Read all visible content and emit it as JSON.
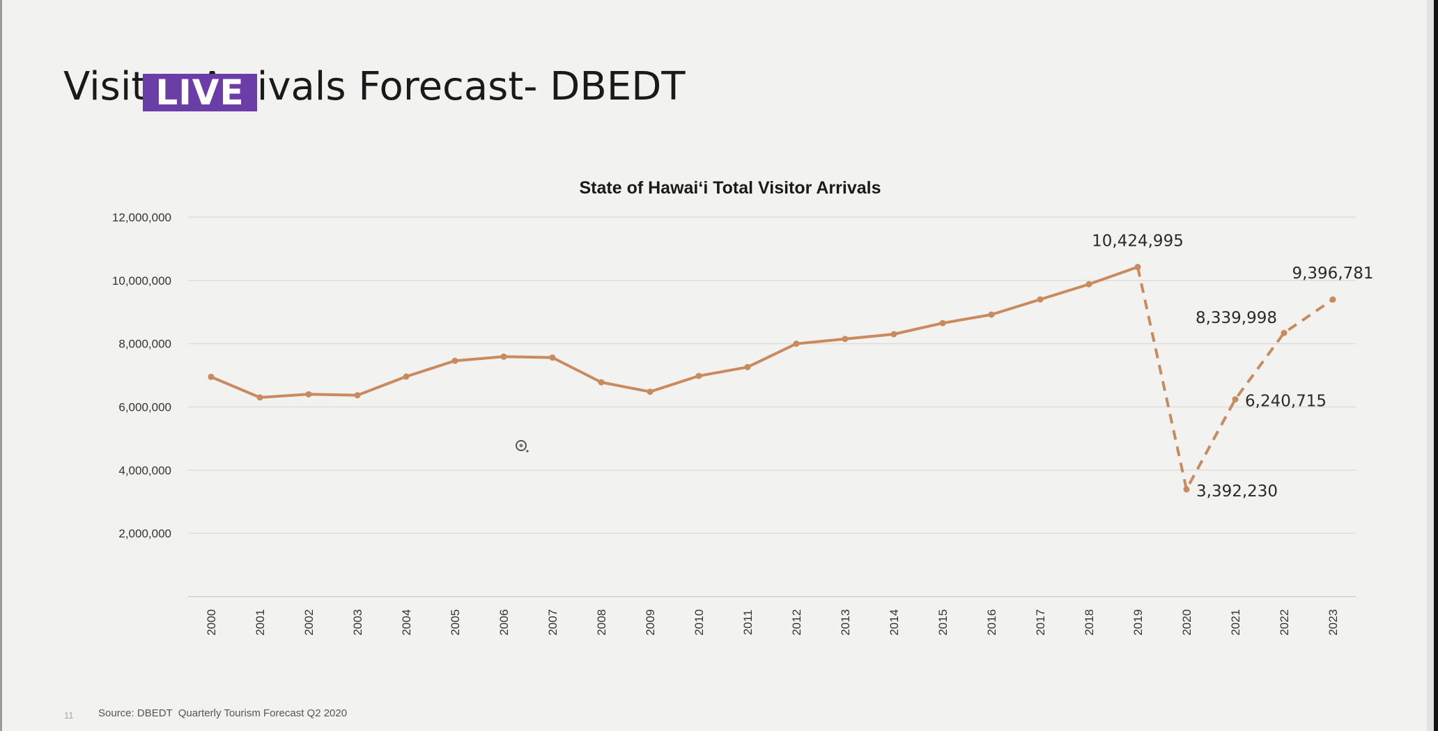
{
  "slide": {
    "title": "Visitor Arrivals Forecast- DBEDT",
    "live_badge": "LIVE",
    "source": "Source: DBEDT  Quarterly Tourism Forecast Q2 2020",
    "page_number": "11"
  },
  "colors": {
    "series": "#c98a5e",
    "gridline": "#dcdcdc",
    "live_badge": "#6a3ea6"
  },
  "icons": {
    "cursor": "cursor-icon"
  },
  "chart_data": {
    "type": "line",
    "title": "State of Hawaiʻi Total Visitor Arrivals",
    "xlabel": "",
    "ylabel": "",
    "ylim": [
      0,
      12000000
    ],
    "yticks": [
      {
        "value": 2000000,
        "label": "2,000,000"
      },
      {
        "value": 4000000,
        "label": "4,000,000"
      },
      {
        "value": 6000000,
        "label": "6,000,000"
      },
      {
        "value": 8000000,
        "label": "8,000,000"
      },
      {
        "value": 10000000,
        "label": "10,000,000"
      },
      {
        "value": 12000000,
        "label": "12,000,000"
      }
    ],
    "grid": true,
    "legend": "none",
    "x": [
      "2000",
      "2001",
      "2002",
      "2003",
      "2004",
      "2005",
      "2006",
      "2007",
      "2008",
      "2009",
      "2010",
      "2011",
      "2012",
      "2013",
      "2014",
      "2015",
      "2016",
      "2017",
      "2018",
      "2019",
      "2020",
      "2021",
      "2022",
      "2023"
    ],
    "series": [
      {
        "style": "solid",
        "x": [
          "2000",
          "2001",
          "2002",
          "2003",
          "2004",
          "2005",
          "2006",
          "2007",
          "2008",
          "2009",
          "2010",
          "2011",
          "2012",
          "2013",
          "2014",
          "2015",
          "2016",
          "2017",
          "2018",
          "2019"
        ],
        "values": [
          6950000,
          6300000,
          6400000,
          6370000,
          6960000,
          7460000,
          7590000,
          7560000,
          6780000,
          6480000,
          6980000,
          7260000,
          8000000,
          8150000,
          8300000,
          8650000,
          8920000,
          9400000,
          9880000,
          10424995
        ]
      },
      {
        "style": "dashed",
        "x": [
          "2019",
          "2020",
          "2021",
          "2022",
          "2023"
        ],
        "values": [
          10424995,
          3392230,
          6240715,
          8339998,
          9396781
        ]
      }
    ],
    "data_labels": [
      {
        "x": "2019",
        "text": "10,424,995",
        "anchor": "above"
      },
      {
        "x": "2020",
        "text": "3,392,230",
        "anchor": "right"
      },
      {
        "x": "2021",
        "text": "6,240,715",
        "anchor": "right"
      },
      {
        "x": "2022",
        "text": "8,339,998",
        "anchor": "left"
      },
      {
        "x": "2023",
        "text": "9,396,781",
        "anchor": "above"
      }
    ]
  }
}
